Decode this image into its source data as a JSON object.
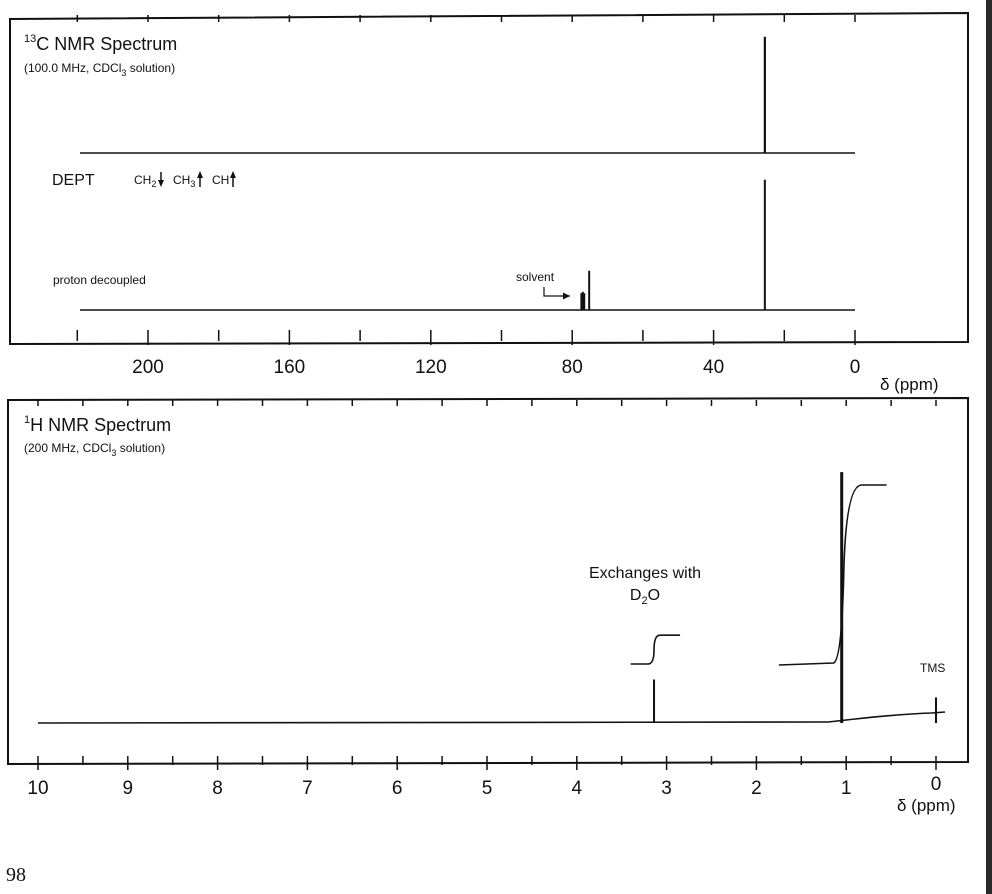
{
  "page": {
    "number": "98"
  },
  "chart_data": [
    {
      "type": "line",
      "title_sup": "13",
      "title": "C NMR Spectrum",
      "subtitle_pre": "(100.0 MHz, CDCl",
      "subtitle_sub": "3",
      "subtitle_post": " solution)",
      "xlabel": "δ (ppm)",
      "xlim": [
        220,
        0
      ],
      "xticks_major": [
        200,
        160,
        120,
        80,
        40,
        0
      ],
      "dept": {
        "label": "DEPT",
        "legend": [
          {
            "text": "CH",
            "sub": "2",
            "direction": "down"
          },
          {
            "text": "CH",
            "sub": "3",
            "direction": "up"
          },
          {
            "text": "CH",
            "sub": "",
            "direction": "up"
          }
        ],
        "peaks": [
          {
            "x": 25.5,
            "y": 0.93
          }
        ]
      },
      "decoupled": {
        "label": "proton decoupled",
        "peaks": [
          {
            "x": 77.4,
            "y": 0.12
          },
          {
            "x": 77.0,
            "y": 0.13
          },
          {
            "x": 76.6,
            "y": 0.12
          },
          {
            "x": 75.2,
            "y": 0.28
          },
          {
            "x": 25.5,
            "y": 0.93
          }
        ]
      },
      "annotations": [
        {
          "text": "solvent",
          "x": 77.0
        }
      ]
    },
    {
      "type": "line",
      "title_sup": "1",
      "title": "H NMR Spectrum",
      "subtitle_pre": "(200 MHz, CDCl",
      "subtitle_sub": "3",
      "subtitle_post": " solution)",
      "xlabel": "δ (ppm)",
      "xlim": [
        10,
        0
      ],
      "xticks_major": [
        10,
        9,
        8,
        7,
        6,
        5,
        4,
        3,
        2,
        1,
        0
      ],
      "peaks": [
        {
          "x": 3.14,
          "y": 0.17,
          "label": ""
        },
        {
          "x": 1.05,
          "y": 0.98,
          "label": ""
        },
        {
          "x": 0.0,
          "y": 0.1,
          "label": "TMS"
        }
      ],
      "integrals": [
        {
          "from": 3.4,
          "to": 2.85,
          "at": 3.14,
          "step": 0.12
        },
        {
          "from": 1.75,
          "to": 0.55,
          "at": 1.05,
          "step": 0.72
        }
      ],
      "annotation": {
        "line1": "Exchanges with",
        "line2_pre": "D",
        "line2_sub": "2",
        "line2_post": "O",
        "x": 3.5
      }
    }
  ]
}
